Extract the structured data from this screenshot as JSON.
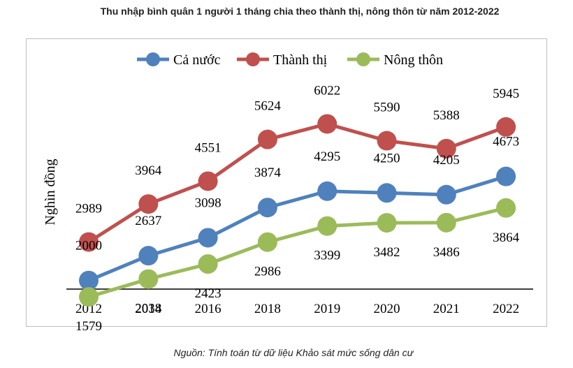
{
  "chart_data": {
    "type": "line",
    "title": "Thu nhập bình quân 1 người 1 tháng chia theo thành thị, nông thôn từ năm 2012-2022",
    "ylabel": "Nghìn đồng",
    "xlabel": "",
    "categories": [
      "2012",
      "2014",
      "2016",
      "2018",
      "2019",
      "2020",
      "2021",
      "2022"
    ],
    "series": [
      {
        "name": "Cả nước",
        "color": "#4f81bd",
        "values": [
          2000,
          2637,
          3098,
          3874,
          4295,
          4250,
          4205,
          4673
        ]
      },
      {
        "name": "Thành thị",
        "color": "#c0504d",
        "values": [
          2989,
          3964,
          4551,
          5624,
          6022,
          5590,
          5388,
          5945
        ]
      },
      {
        "name": "Nông thôn",
        "color": "#9bbb59",
        "values": [
          1579,
          2038,
          2423,
          2986,
          3399,
          3482,
          3486,
          3864
        ]
      }
    ],
    "legend_position": "top",
    "grid": false
  },
  "source_note": "Nguồn: Tính toán từ dữ liệu Khảo sát mức sống dân cư"
}
